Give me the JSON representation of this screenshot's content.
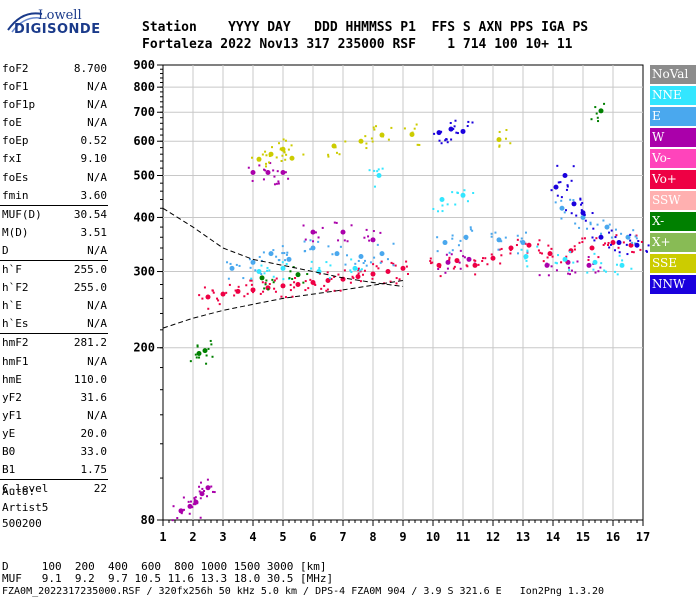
{
  "logo": {
    "line1": "Lowell",
    "line2": "DIGISONDE"
  },
  "header": {
    "labels_line": "Station    YYYY DAY   DDD HHMMSS P1  FFS S AXN PPS IGA PS",
    "values_line": "Fortaleza 2022 Nov13 317 235000 RSF    1 714 100 10+ 11"
  },
  "params": [
    [
      {
        "label": "foF2",
        "value": "8.700"
      },
      {
        "label": "foF1",
        "value": "N/A"
      },
      {
        "label": "foF1p",
        "value": "N/A"
      },
      {
        "label": "foE",
        "value": "N/A"
      },
      {
        "label": "foEp",
        "value": "0.52"
      },
      {
        "label": "fxI",
        "value": "9.10"
      },
      {
        "label": "foEs",
        "value": "N/A"
      },
      {
        "label": "fmin",
        "value": "3.60"
      }
    ],
    [
      {
        "label": "MUF(D)",
        "value": "30.54"
      },
      {
        "label": "M(D)",
        "value": "3.51"
      },
      {
        "label": "D",
        "value": "N/A"
      }
    ],
    [
      {
        "label": "h`F",
        "value": "255.0"
      },
      {
        "label": "h`F2",
        "value": "255.0"
      },
      {
        "label": "h`E",
        "value": "N/A"
      },
      {
        "label": "h`Es",
        "value": "N/A"
      }
    ],
    [
      {
        "label": "hmF2",
        "value": "281.2"
      },
      {
        "label": "hmF1",
        "value": "N/A"
      },
      {
        "label": "hmE",
        "value": "110.0"
      },
      {
        "label": "yF2",
        "value": "31.6"
      },
      {
        "label": "yF1",
        "value": "N/A"
      },
      {
        "label": "yE",
        "value": "20.0"
      },
      {
        "label": "B0",
        "value": "33.0"
      },
      {
        "label": "B1",
        "value": "1.75"
      }
    ],
    [
      {
        "label": "C-level",
        "value": "22"
      }
    ]
  ],
  "auto": {
    "line1": "Auto:",
    "line2": "Artist5",
    "line3": "500200"
  },
  "legend": [
    {
      "label": "NoVal",
      "color": "#8c8c8c"
    },
    {
      "label": "NNE",
      "color": "#33e6ff"
    },
    {
      "label": "E",
      "color": "#4aa8ee"
    },
    {
      "label": "W",
      "color": "#aa00aa"
    },
    {
      "label": "Vo-",
      "color": "#ff44bb"
    },
    {
      "label": "Vo+",
      "color": "#ee0044"
    },
    {
      "label": "SSW",
      "color": "#ffb0b0"
    },
    {
      "label": "X-",
      "color": "#008000"
    },
    {
      "label": "X+",
      "color": "#88bb55"
    },
    {
      "label": "SSE",
      "color": "#cccc00"
    },
    {
      "label": "NNW",
      "color": "#1a00dd"
    }
  ],
  "footer": {
    "line1": "D     100  200  400  600  800 1000 1500 3000 [km]",
    "line2": "MUF   9.1  9.2  9.7 10.5 11.6 13.3 18.0 30.5 [MHz]",
    "line3": "FZA0M_2022317235000.RSF / 320fx256h 50 kHz 5.0 km / DPS-4 FZA0M 904 / 3.9 S 321.6 E   Ion2Png 1.3.20"
  },
  "chart_data": {
    "type": "scatter",
    "title": "",
    "xlabel": "",
    "ylabel": "",
    "xlim": [
      1,
      17
    ],
    "ylim": [
      80,
      900
    ],
    "x_ticks": [
      "1",
      "2",
      "3",
      "4",
      "5",
      "6",
      "7",
      "8",
      "9",
      "10",
      "11",
      "12",
      "13",
      "14",
      "15",
      "16",
      "17"
    ],
    "y_ticks": [
      "80",
      "200",
      "300",
      "400",
      "500",
      "600",
      "700",
      "800",
      "900"
    ],
    "y_scale": "logarithmic",
    "grid": true,
    "series": [
      {
        "name": "W",
        "color": "#aa00aa",
        "points": [
          [
            1.6,
            84
          ],
          [
            1.9,
            86
          ],
          [
            2.1,
            88
          ],
          [
            2.3,
            92
          ],
          [
            2.5,
            95
          ],
          [
            4.0,
            508
          ],
          [
            4.5,
            508
          ],
          [
            5.0,
            508
          ],
          [
            6.0,
            370
          ],
          [
            7.0,
            370
          ],
          [
            8.0,
            355
          ],
          [
            10.5,
            315
          ],
          [
            11.2,
            320
          ],
          [
            13.8,
            310
          ],
          [
            14.5,
            315
          ],
          [
            15.2,
            310
          ]
        ]
      },
      {
        "name": "Vo+",
        "color": "#ee0044",
        "points": [
          [
            2.5,
            262
          ],
          [
            3.0,
            266
          ],
          [
            3.5,
            270
          ],
          [
            4.0,
            272
          ],
          [
            4.5,
            275
          ],
          [
            5.0,
            278
          ],
          [
            5.5,
            280
          ],
          [
            6.0,
            283
          ],
          [
            6.5,
            286
          ],
          [
            7.0,
            288
          ],
          [
            7.5,
            292
          ],
          [
            8.0,
            296
          ],
          [
            8.5,
            300
          ],
          [
            9.0,
            305
          ],
          [
            10.2,
            310
          ],
          [
            10.8,
            318
          ],
          [
            11.4,
            310
          ],
          [
            12.0,
            322
          ],
          [
            12.6,
            340
          ],
          [
            13.2,
            345
          ],
          [
            13.9,
            330
          ],
          [
            14.6,
            335
          ],
          [
            15.3,
            340
          ],
          [
            16.0,
            350
          ],
          [
            16.6,
            345
          ]
        ]
      },
      {
        "name": "E",
        "color": "#4aa8ee",
        "points": [
          [
            3.3,
            305
          ],
          [
            4.0,
            315
          ],
          [
            4.6,
            330
          ],
          [
            5.2,
            320
          ],
          [
            6.0,
            340
          ],
          [
            6.8,
            330
          ],
          [
            7.6,
            325
          ],
          [
            8.3,
            330
          ],
          [
            10.4,
            350
          ],
          [
            11.1,
            360
          ],
          [
            12.2,
            355
          ],
          [
            13.0,
            350
          ],
          [
            14.3,
            420
          ],
          [
            15.0,
            400
          ],
          [
            15.8,
            380
          ],
          [
            16.5,
            360
          ]
        ]
      },
      {
        "name": "NNE",
        "color": "#33e6ff",
        "points": [
          [
            4.2,
            300
          ],
          [
            5.0,
            305
          ],
          [
            6.2,
            300
          ],
          [
            7.4,
            305
          ],
          [
            8.2,
            500
          ],
          [
            10.3,
            440
          ],
          [
            11.0,
            450
          ],
          [
            13.1,
            325
          ],
          [
            14.4,
            320
          ],
          [
            15.4,
            315
          ],
          [
            16.3,
            310
          ]
        ]
      },
      {
        "name": "NNW",
        "color": "#1a00dd",
        "points": [
          [
            10.2,
            628
          ],
          [
            10.6,
            640
          ],
          [
            11.0,
            632
          ],
          [
            14.1,
            470
          ],
          [
            14.4,
            500
          ],
          [
            14.7,
            430
          ],
          [
            15.0,
            410
          ],
          [
            15.6,
            360
          ],
          [
            16.2,
            350
          ],
          [
            16.8,
            345
          ]
        ]
      },
      {
        "name": "SSE",
        "color": "#cccc00",
        "points": [
          [
            4.2,
            545
          ],
          [
            4.6,
            560
          ],
          [
            5.0,
            575
          ],
          [
            5.3,
            548
          ],
          [
            6.7,
            585
          ],
          [
            7.6,
            600
          ],
          [
            8.3,
            620
          ],
          [
            9.3,
            622
          ],
          [
            12.2,
            605
          ]
        ]
      },
      {
        "name": "X-",
        "color": "#008000",
        "points": [
          [
            2.2,
            194
          ],
          [
            2.4,
            197
          ],
          [
            4.3,
            290
          ],
          [
            5.5,
            295
          ],
          [
            15.6,
            705
          ]
        ]
      }
    ],
    "curves": [
      {
        "name": "upper",
        "style": "dashed",
        "points": [
          [
            1,
            420
          ],
          [
            2,
            380
          ],
          [
            3,
            340
          ],
          [
            4,
            320
          ],
          [
            5,
            310
          ],
          [
            6,
            300
          ],
          [
            7,
            290
          ],
          [
            8,
            283
          ],
          [
            9,
            277
          ]
        ]
      },
      {
        "name": "lower",
        "style": "dashed",
        "points": [
          [
            1,
            222
          ],
          [
            2,
            234
          ],
          [
            3,
            244
          ],
          [
            4,
            252
          ],
          [
            5,
            260
          ],
          [
            6,
            266
          ],
          [
            7,
            272
          ],
          [
            8,
            279
          ],
          [
            9,
            286
          ]
        ]
      }
    ]
  }
}
